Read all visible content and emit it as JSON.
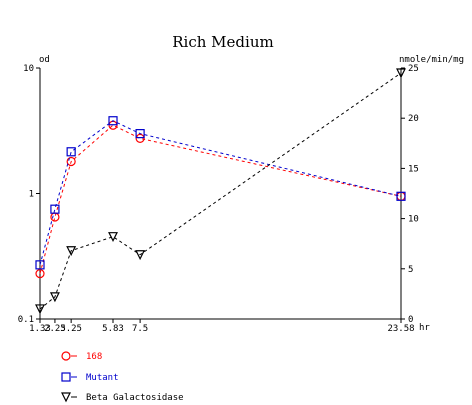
{
  "chart_data": {
    "type": "line",
    "title": "Rich Medium",
    "left_axis": {
      "label": "od",
      "scale": "log",
      "range": [
        0.1,
        10
      ],
      "ticks": [
        {
          "value": 0.1,
          "label": "0.1"
        },
        {
          "value": 1,
          "label": "1"
        },
        {
          "value": 10,
          "label": "10"
        }
      ]
    },
    "right_axis": {
      "label": "nmole/min/mg",
      "scale": "linear",
      "range": [
        0,
        25
      ],
      "ticks": [
        {
          "value": 0,
          "label": "0"
        },
        {
          "value": 5,
          "label": "5"
        },
        {
          "value": 10,
          "label": "10"
        },
        {
          "value": 15,
          "label": "15"
        },
        {
          "value": 20,
          "label": "20"
        },
        {
          "value": 25,
          "label": "25"
        }
      ]
    },
    "x_axis": {
      "label": "hr",
      "range": [
        1.33,
        23.58
      ],
      "ticks": [
        {
          "value": 1.33,
          "label": "1.33"
        },
        {
          "value": 2.25,
          "label": "2.25"
        },
        {
          "value": 3.25,
          "label": "3.25"
        },
        {
          "value": 5.83,
          "label": "5.83"
        },
        {
          "value": 7.5,
          "label": "7.5"
        },
        {
          "value": 23.58,
          "label": "23.58"
        }
      ]
    },
    "series": [
      {
        "name": "168",
        "axis": "left",
        "marker": "circle",
        "color": "#ff0000",
        "x": [
          1.33,
          2.25,
          3.25,
          5.83,
          7.5,
          23.58
        ],
        "y": [
          0.23,
          0.65,
          1.8,
          3.5,
          2.75,
          0.95
        ]
      },
      {
        "name": "Mutant",
        "axis": "left",
        "marker": "square",
        "color": "#0000cc",
        "x": [
          1.33,
          2.25,
          3.25,
          5.83,
          7.5,
          23.58
        ],
        "y": [
          0.27,
          0.75,
          2.15,
          3.8,
          3.0,
          0.95
        ]
      },
      {
        "name": "Beta Galactosidase",
        "axis": "right",
        "marker": "triangle-down",
        "color": "#000000",
        "x": [
          1.33,
          2.25,
          3.25,
          5.83,
          7.5,
          23.58
        ],
        "y": [
          1.0,
          2.2,
          6.8,
          8.2,
          6.4,
          24.5
        ]
      }
    ],
    "legend_position": "bottom-left"
  }
}
